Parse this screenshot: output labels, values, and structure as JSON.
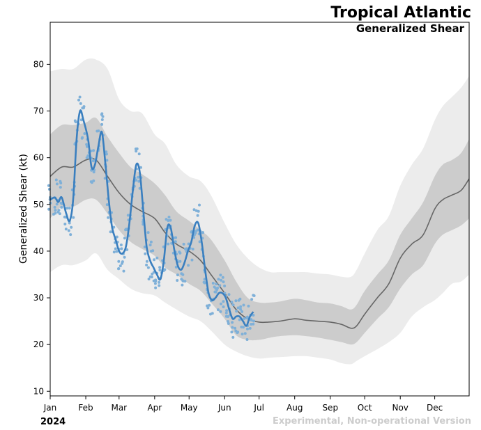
{
  "chart_data": {
    "type": "line",
    "title": "Tropical Atlantic",
    "subtitle": "Generalized Shear",
    "ylabel": "Generalized Shear (kt)",
    "xlabel": "",
    "year_label": "2024",
    "footer": "Experimental, Non-operational Version",
    "ylim": [
      9,
      89
    ],
    "xlim": [
      0,
      365
    ],
    "yticks": [
      10,
      20,
      30,
      40,
      50,
      60,
      70,
      80
    ],
    "xticks": [
      {
        "label": "Jan",
        "day": 0
      },
      {
        "label": "Feb",
        "day": 31
      },
      {
        "label": "Mar",
        "day": 60
      },
      {
        "label": "Apr",
        "day": 91
      },
      {
        "label": "May",
        "day": 121
      },
      {
        "label": "Jun",
        "day": 152
      },
      {
        "label": "Jul",
        "day": 182
      },
      {
        "label": "Aug",
        "day": 213
      },
      {
        "label": "Sep",
        "day": 244
      },
      {
        "label": "Oct",
        "day": 274
      },
      {
        "label": "Nov",
        "day": 305
      },
      {
        "label": "Dec",
        "day": 335
      }
    ],
    "colors": {
      "outer_band": "#ececec",
      "inner_band": "#cccccc",
      "climatology": "#666666",
      "observed": "#3a7fbf",
      "scatter": "#7fb0d8",
      "footer": "#cccccc"
    },
    "series": [
      {
        "name": "Climatology mean",
        "x": [
          0,
          10,
          20,
          31,
          40,
          50,
          60,
          70,
          80,
          91,
          100,
          110,
          121,
          131,
          140,
          152,
          162,
          172,
          182,
          190,
          200,
          213,
          223,
          233,
          244,
          254,
          262,
          267,
          274,
          285,
          295,
          305,
          315,
          325,
          335,
          342,
          350,
          358,
          365
        ],
        "y": [
          56,
          58,
          58,
          59.5,
          59.5,
          56,
          52.5,
          50,
          48.5,
          47,
          44,
          41.5,
          40,
          38,
          35,
          31,
          27.5,
          25.5,
          24.8,
          24.8,
          25,
          25.5,
          25.2,
          25,
          24.8,
          24.3,
          23.5,
          24,
          26.5,
          30,
          33,
          38.5,
          41.5,
          43.5,
          49,
          51,
          52,
          53,
          55.5
        ]
      },
      {
        "name": "Inner band (upper)",
        "x": [
          0,
          10,
          20,
          31,
          40,
          50,
          60,
          70,
          80,
          91,
          100,
          110,
          121,
          131,
          140,
          152,
          162,
          172,
          182,
          192,
          200,
          213,
          223,
          233,
          244,
          254,
          262,
          267,
          274,
          285,
          295,
          305,
          315,
          325,
          335,
          342,
          350,
          358,
          365
        ],
        "y": [
          65,
          67,
          67,
          67.5,
          68.5,
          64.5,
          61,
          58,
          56.5,
          54.5,
          52,
          48.5,
          46.5,
          44.5,
          42.5,
          38,
          33.5,
          30,
          29,
          29,
          29.2,
          29.8,
          29.5,
          29,
          28.8,
          28.2,
          27.5,
          28.5,
          31.5,
          35,
          38,
          43.5,
          47,
          50.5,
          56,
          58.5,
          59.5,
          61,
          64
        ]
      },
      {
        "name": "Inner band (lower)",
        "x": [
          0,
          10,
          20,
          31,
          40,
          50,
          60,
          70,
          80,
          91,
          100,
          110,
          121,
          131,
          140,
          152,
          162,
          172,
          182,
          192,
          200,
          213,
          223,
          233,
          244,
          254,
          262,
          267,
          274,
          285,
          295,
          305,
          315,
          325,
          335,
          342,
          350,
          358,
          365
        ],
        "y": [
          47,
          49.5,
          49.5,
          51,
          51,
          48,
          44.5,
          42,
          40.5,
          39,
          36.5,
          35,
          33,
          31.5,
          29,
          25.5,
          22,
          21,
          21,
          21.5,
          21.8,
          22,
          21.8,
          21.5,
          21,
          20.5,
          20,
          20.5,
          22.5,
          25.5,
          28,
          32,
          35,
          37,
          41.5,
          43.5,
          44.5,
          45.5,
          47
        ]
      },
      {
        "name": "Outer band (upper)",
        "x": [
          0,
          10,
          20,
          31,
          40,
          50,
          60,
          70,
          80,
          91,
          100,
          110,
          121,
          131,
          140,
          152,
          162,
          172,
          182,
          192,
          200,
          213,
          223,
          233,
          244,
          254,
          262,
          267,
          274,
          285,
          295,
          305,
          315,
          325,
          335,
          342,
          350,
          358,
          365
        ],
        "y": [
          78.5,
          79,
          79,
          81,
          81,
          79,
          72.5,
          70,
          69.5,
          65,
          63,
          58.5,
          56,
          55,
          52,
          46,
          41.5,
          38.5,
          36.5,
          35.5,
          35.5,
          35.5,
          35.5,
          35.2,
          35,
          34.5,
          34.5,
          36,
          39.5,
          44.5,
          47.5,
          54,
          58.5,
          62,
          68,
          71,
          73,
          75,
          77.5
        ]
      },
      {
        "name": "Outer band (lower)",
        "x": [
          0,
          10,
          20,
          31,
          40,
          50,
          60,
          70,
          80,
          91,
          100,
          110,
          121,
          131,
          140,
          152,
          162,
          172,
          182,
          192,
          200,
          213,
          223,
          233,
          244,
          254,
          262,
          267,
          274,
          285,
          295,
          305,
          315,
          325,
          335,
          342,
          350,
          358,
          365
        ],
        "y": [
          35.5,
          37,
          37,
          38,
          39.5,
          36,
          34,
          32,
          31,
          30.5,
          29,
          27.5,
          26,
          25,
          23,
          20,
          18.5,
          17.5,
          17,
          17.2,
          17.3,
          17.5,
          17.5,
          17.2,
          16.8,
          16,
          15.8,
          16.5,
          17.5,
          19,
          20.5,
          22.5,
          26,
          28,
          29.5,
          31,
          33,
          33.5,
          35
        ]
      },
      {
        "name": "Observed 2024",
        "x": [
          0,
          4,
          7,
          10,
          14,
          17,
          20,
          23,
          26,
          29,
          33,
          36,
          39,
          42,
          45,
          48,
          51,
          54,
          57,
          60,
          63,
          66,
          69,
          72,
          75,
          78,
          81,
          84,
          87,
          90,
          93,
          96,
          99,
          102,
          105,
          108,
          111,
          114,
          117,
          120,
          123,
          126,
          129,
          132,
          135,
          138,
          141,
          144,
          147,
          150,
          153,
          156,
          159,
          162,
          165,
          168,
          171,
          174,
          177
        ],
        "y": [
          51,
          51.5,
          50.5,
          51.5,
          48,
          46.5,
          51,
          64,
          70,
          68,
          64,
          58,
          58.5,
          62.5,
          65.5,
          59,
          51,
          45,
          42.5,
          40,
          39.5,
          41,
          46,
          53,
          58.5,
          57,
          49,
          41,
          38,
          36.5,
          35,
          34,
          38,
          45,
          45,
          40.5,
          37,
          36,
          37.5,
          40,
          42,
          45.5,
          46,
          42,
          36,
          31,
          29.5,
          30,
          31,
          31,
          30,
          27.5,
          25.5,
          26,
          26,
          25,
          24,
          26,
          27
        ]
      }
    ]
  }
}
